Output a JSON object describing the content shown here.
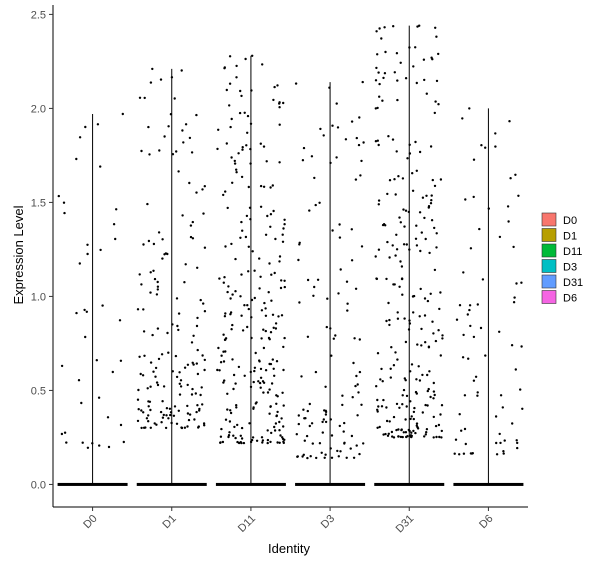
{
  "chart_data": {
    "type": "violin-jitter",
    "xlabel": "Identity",
    "ylabel": "Expression Level",
    "categories": [
      "D0",
      "D1",
      "D11",
      "D3",
      "D31",
      "D6"
    ],
    "ylim": [
      -0.12,
      2.55
    ],
    "yticks": [
      "0.0",
      "0.5",
      "1.0",
      "1.5",
      "2.0",
      "2.5"
    ],
    "legend": {
      "position": "right",
      "items": [
        {
          "label": "D0",
          "color": "#F8766D"
        },
        {
          "label": "D1",
          "color": "#B79F00"
        },
        {
          "label": "D11",
          "color": "#00BA38"
        },
        {
          "label": "D3",
          "color": "#00BFC4"
        },
        {
          "label": "D31",
          "color": "#619CFF"
        },
        {
          "label": "D6",
          "color": "#F564E3"
        }
      ]
    },
    "series": [
      {
        "category": "D0",
        "max": 1.97,
        "nonzero_points": 40,
        "nonzero_range": [
          0.18,
          1.97
        ]
      },
      {
        "category": "D1",
        "max": 2.21,
        "nonzero_points": 170,
        "nonzero_range": [
          0.3,
          2.21
        ]
      },
      {
        "category": "D11",
        "max": 2.28,
        "nonzero_points": 260,
        "nonzero_range": [
          0.22,
          2.28
        ]
      },
      {
        "category": "D3",
        "max": 2.14,
        "nonzero_points": 120,
        "nonzero_range": [
          0.14,
          2.14
        ]
      },
      {
        "category": "D31",
        "max": 2.44,
        "nonzero_points": 260,
        "nonzero_range": [
          0.25,
          2.44
        ]
      },
      {
        "category": "D6",
        "max": 2.0,
        "nonzero_points": 75,
        "nonzero_range": [
          0.16,
          2.0
        ]
      }
    ],
    "grid": false
  }
}
